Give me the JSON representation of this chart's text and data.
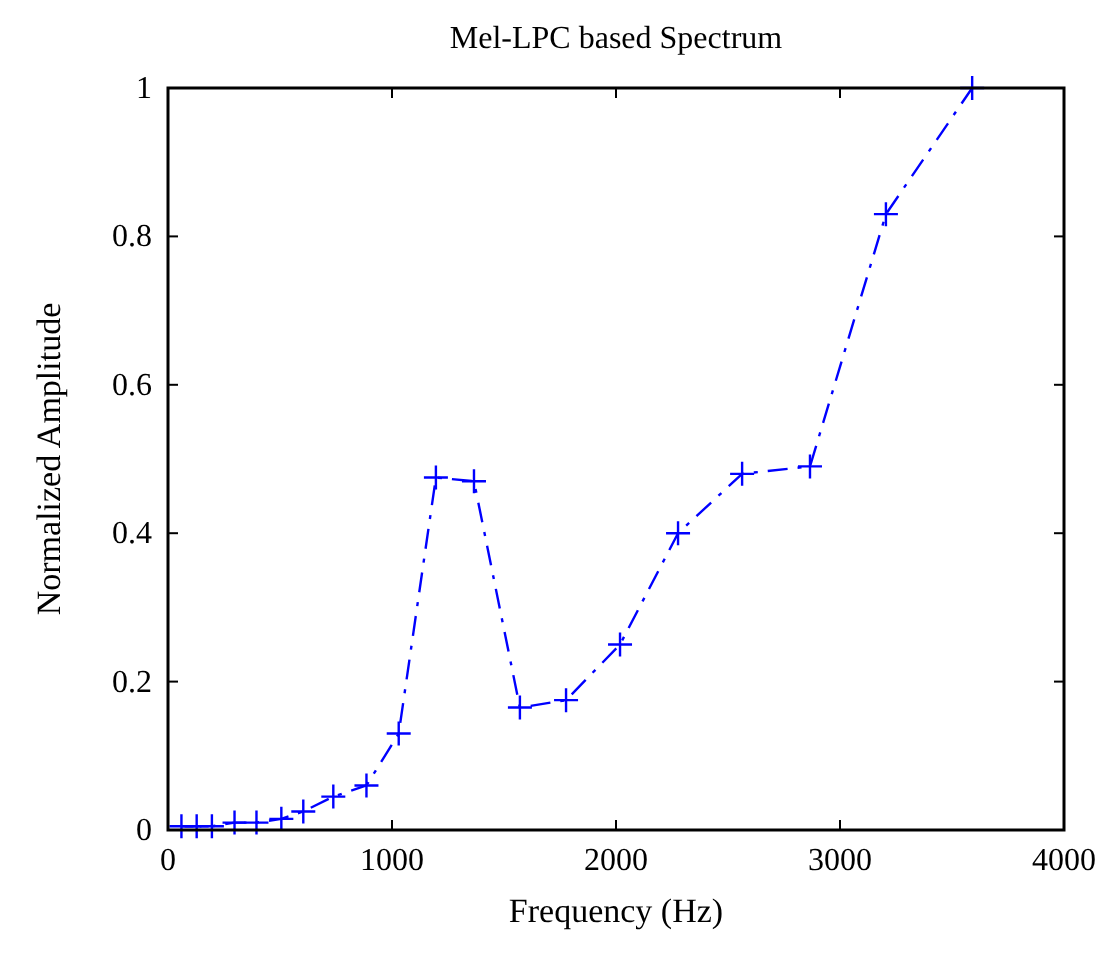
{
  "chart_data": {
    "type": "line",
    "title": "Mel-LPC based Spectrum",
    "xlabel": "Frequency (Hz)",
    "ylabel": "Normalized Amplitude",
    "x": [
      60,
      128,
      196,
      297,
      395,
      506,
      604,
      738,
      886,
      1030,
      1196,
      1366,
      1571,
      1777,
      2018,
      2277,
      2563,
      2866,
      3205,
      3590
    ],
    "series": [
      {
        "color": "#0000ff",
        "values": [
          0.005,
          0.005,
          0.005,
          0.01,
          0.01,
          0.015,
          0.025,
          0.045,
          0.06,
          0.13,
          0.475,
          0.47,
          0.165,
          0.175,
          0.25,
          0.4,
          0.48,
          0.49,
          0.83,
          1.0
        ]
      }
    ],
    "xlim": [
      0,
      4000
    ],
    "xticks": [
      0,
      1000,
      2000,
      3000,
      4000
    ],
    "ylim": [
      0,
      1
    ],
    "yticks": [
      0,
      0.2,
      0.4,
      0.6,
      0.8,
      1
    ],
    "grid": false,
    "marker": "cross",
    "line_style": "dashed"
  }
}
